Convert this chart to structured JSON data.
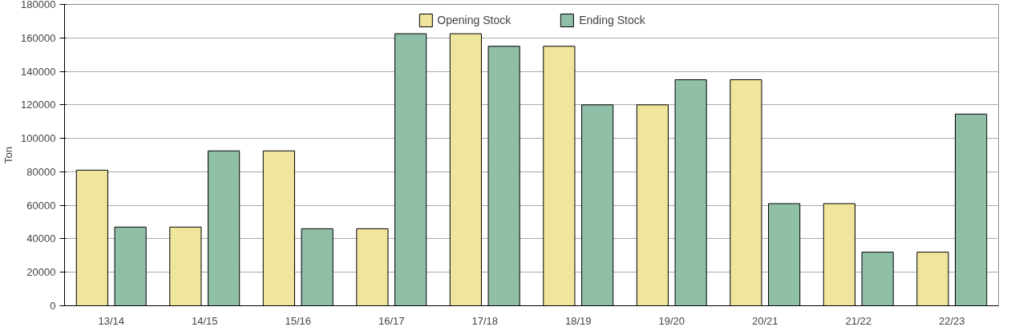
{
  "chart_data": {
    "type": "bar",
    "ylabel": "Ton",
    "categories": [
      "13/14",
      "14/15",
      "15/16",
      "16/17",
      "17/18",
      "18/19",
      "19/20",
      "20/21",
      "21/22",
      "22/23"
    ],
    "series": [
      {
        "name": "Opening Stock",
        "color": "#efe59c",
        "values": [
          81000,
          47000,
          92500,
          46000,
          162500,
          155000,
          120000,
          135000,
          61000,
          32000
        ]
      },
      {
        "name": "Ending Stock",
        "color": "#8fbfa6",
        "values": [
          47000,
          92500,
          46000,
          162500,
          155000,
          120000,
          135000,
          61000,
          32000,
          114500
        ]
      }
    ],
    "ylim": [
      0,
      180000
    ],
    "yticks": [
      0,
      20000,
      40000,
      60000,
      80000,
      100000,
      120000,
      140000,
      160000,
      180000
    ],
    "grid": "y",
    "legend": "top"
  }
}
